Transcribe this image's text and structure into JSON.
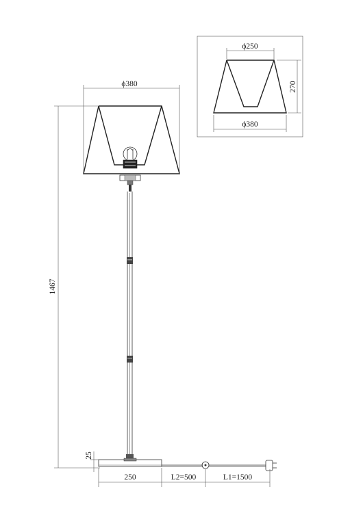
{
  "dimensions": {
    "shade_diameter": "ϕ380",
    "total_height": "1467",
    "base_thickness": "25",
    "base_width": "250",
    "cable_l2": "L2=500",
    "cable_l1": "L1=1500"
  },
  "inset": {
    "top_diameter": "ϕ250",
    "height": "270",
    "bottom_diameter": "ϕ380"
  }
}
